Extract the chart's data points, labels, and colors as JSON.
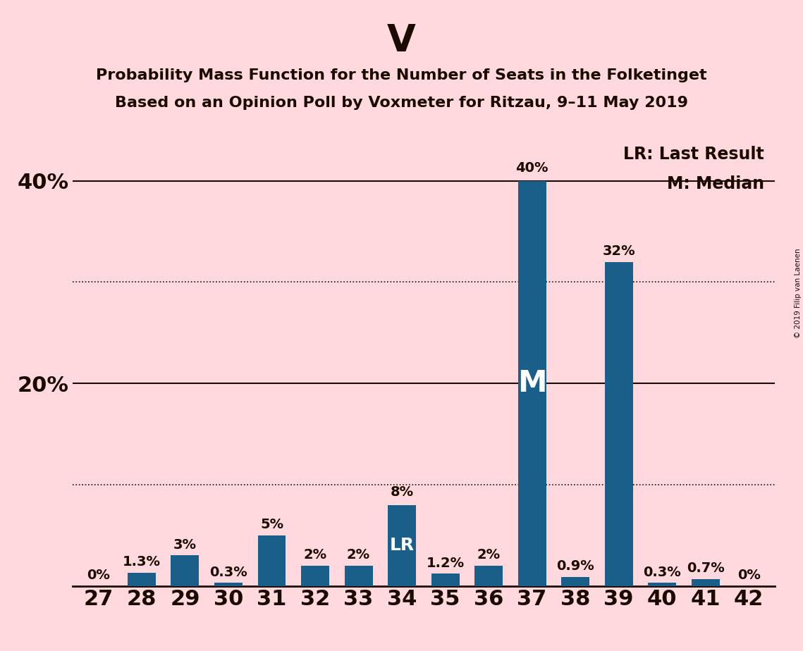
{
  "title_main": "V",
  "title_line1": "Probability Mass Function for the Number of Seats in the Folketinget",
  "title_line2": "Based on an Opinion Poll by Voxmeter for Ritzau, 9–11 May 2019",
  "categories": [
    27,
    28,
    29,
    30,
    31,
    32,
    33,
    34,
    35,
    36,
    37,
    38,
    39,
    40,
    41,
    42
  ],
  "values": [
    0.0,
    1.3,
    3.0,
    0.3,
    5.0,
    2.0,
    2.0,
    8.0,
    1.2,
    2.0,
    40.0,
    0.9,
    32.0,
    0.3,
    0.7,
    0.0
  ],
  "bar_color": "#1a5f8a",
  "background_color": "#ffd9de",
  "text_color": "#1a0a00",
  "label_texts": [
    "0%",
    "1.3%",
    "3%",
    "0.3%",
    "5%",
    "2%",
    "2%",
    "8%",
    "1.2%",
    "2%",
    "40%",
    "0.9%",
    "32%",
    "0.3%",
    "0.7%",
    "0%"
  ],
  "median_seat": 37,
  "lr_seat": 34,
  "legend_text1": "LR: Last Result",
  "legend_text2": "M: Median",
  "ylim": [
    0,
    45
  ],
  "ytick_positions": [
    20,
    40
  ],
  "ytick_labels": [
    "20%",
    "40%"
  ],
  "dotted_lines": [
    10,
    30
  ],
  "solid_lines": [
    20,
    40
  ],
  "copyright": "© 2019 Filip van Laenen",
  "title_fontsize": 38,
  "subtitle_fontsize": 16,
  "axis_fontsize": 22,
  "bar_label_fontsize": 14,
  "legend_fontsize": 17,
  "bar_width": 0.65
}
